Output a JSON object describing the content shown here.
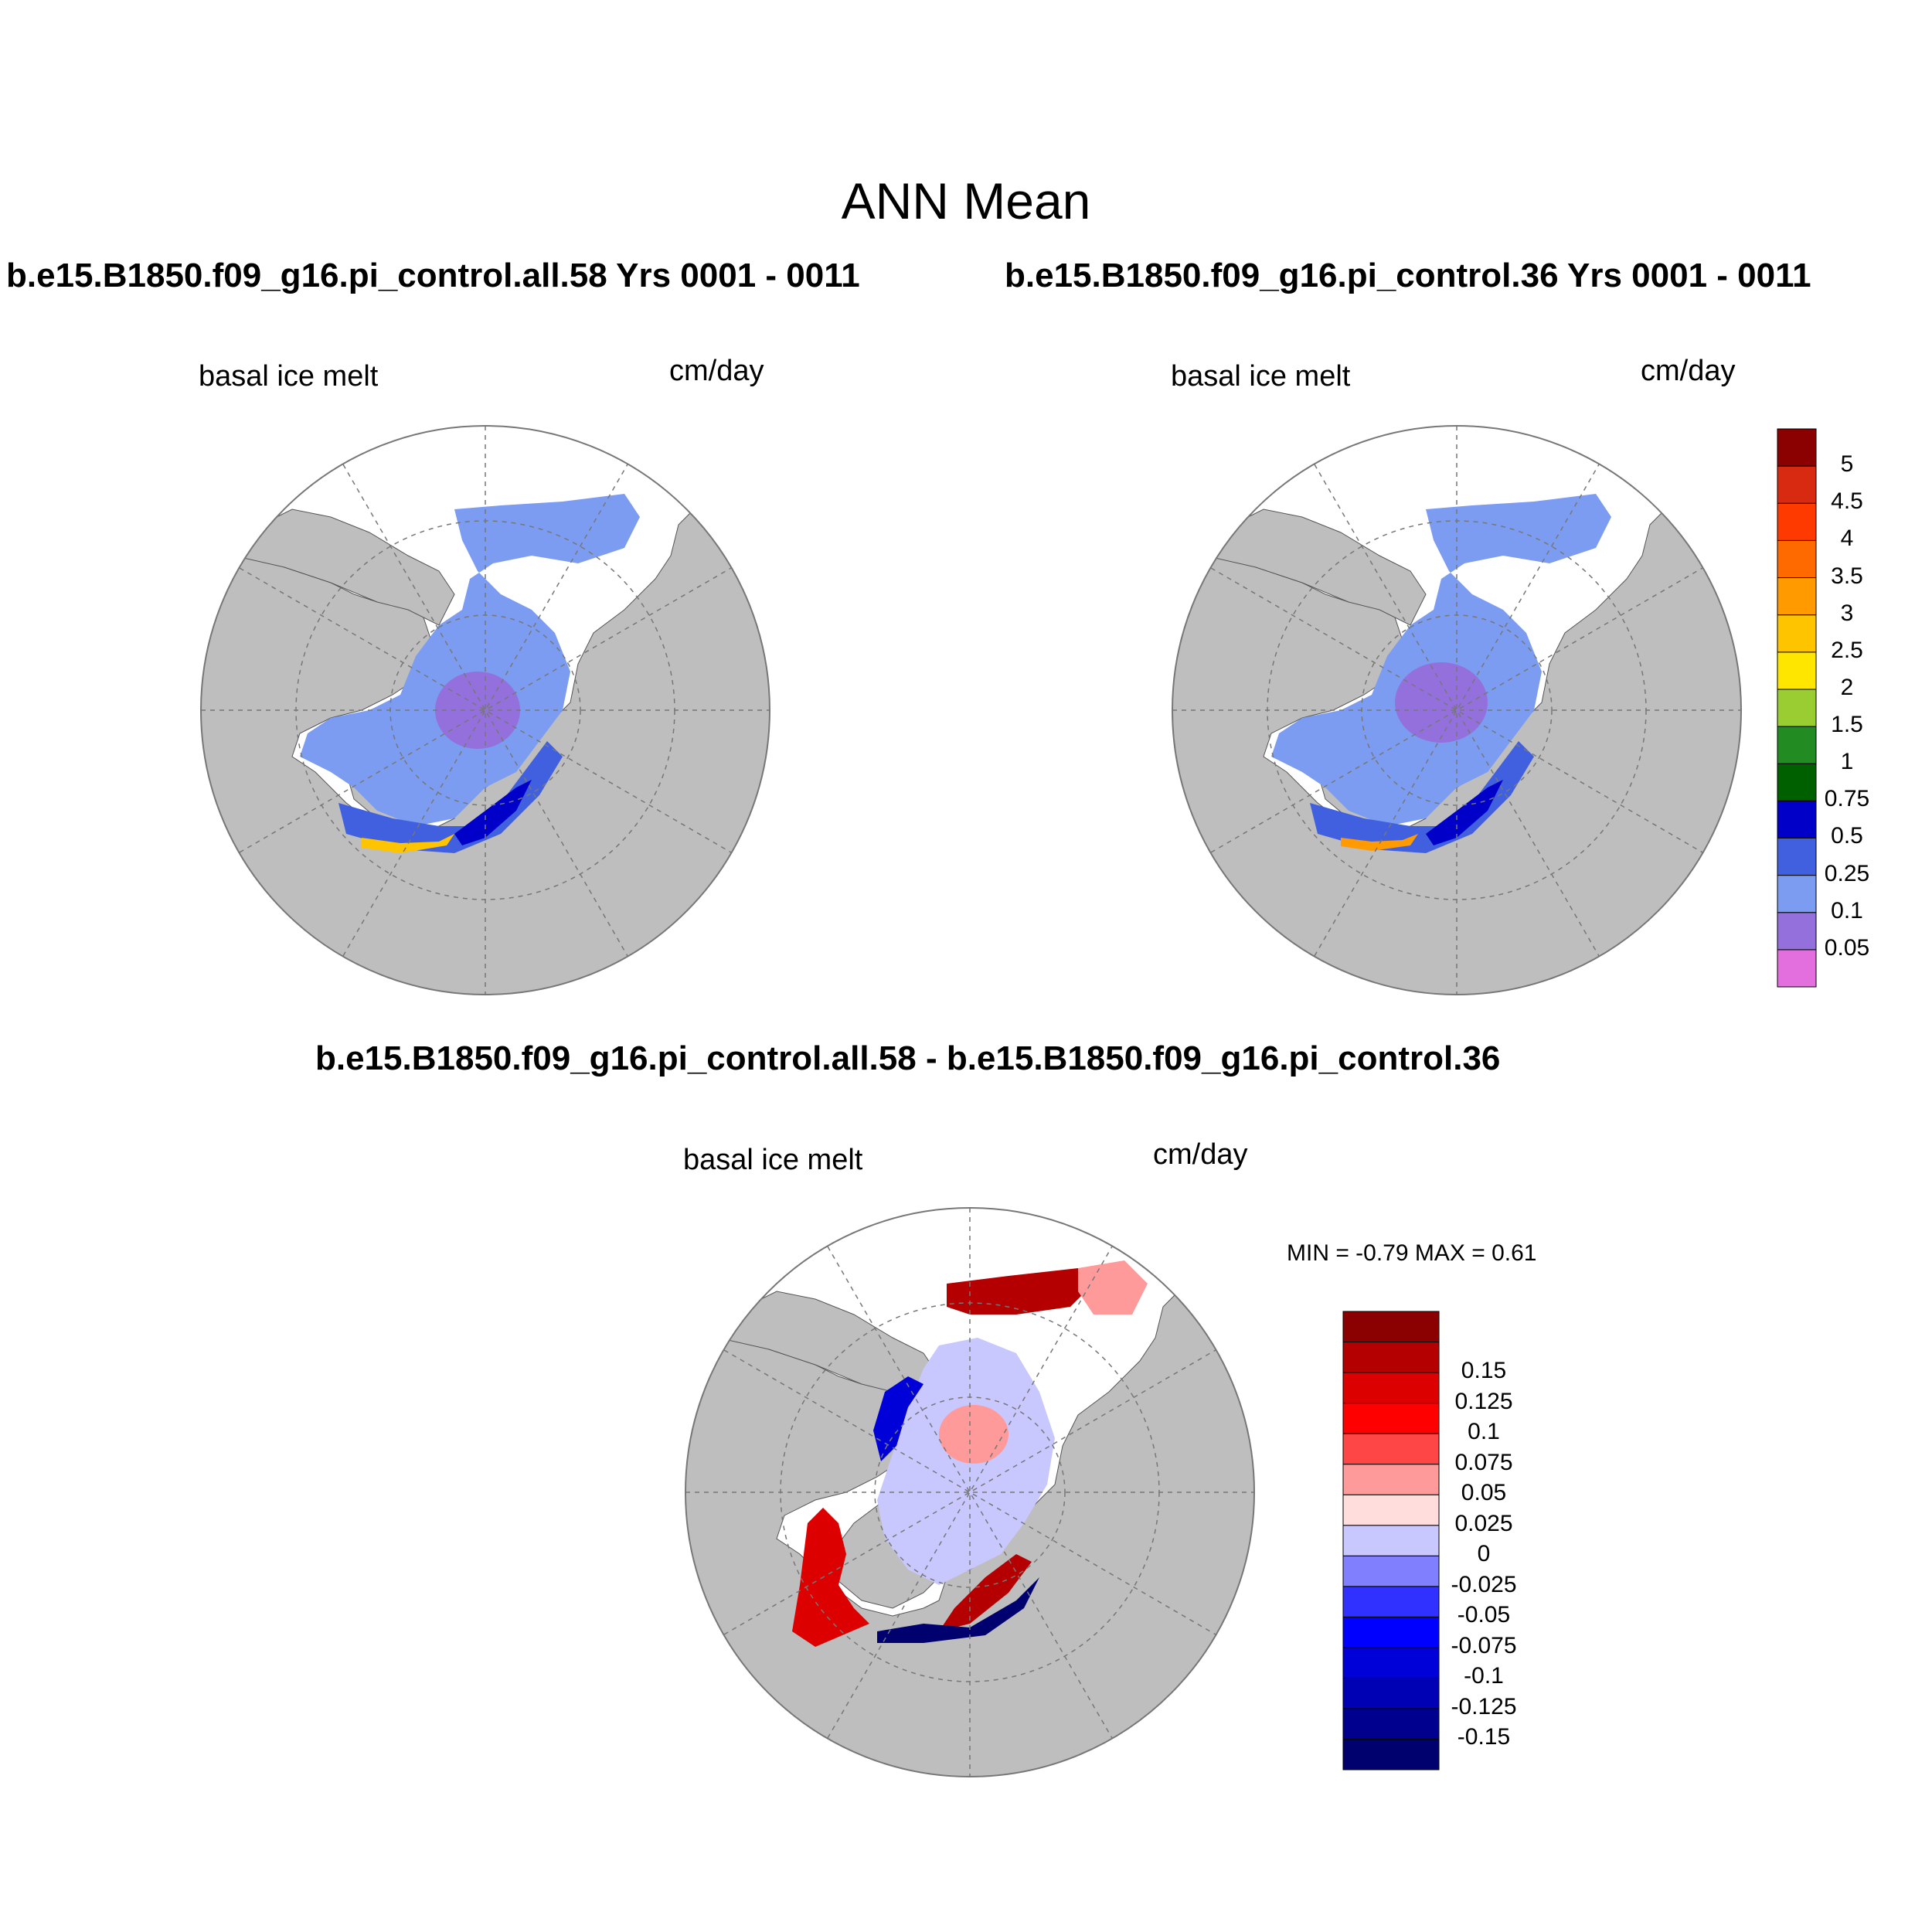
{
  "figure": {
    "title": "ANN Mean"
  },
  "panels": {
    "left": {
      "title": "b.e15.B1850.f09_g16.pi_control.all.58  Yrs 0001 - 0011",
      "field_label": "basal ice melt",
      "units": "cm/day"
    },
    "right": {
      "title": "b.e15.B1850.f09_g16.pi_control.36  Yrs 0001 - 0011",
      "field_label": "basal ice melt",
      "units": "cm/day"
    },
    "diff": {
      "title": "b.e15.B1850.f09_g16.pi_control.all.58 - b.e15.B1850.f09_g16.pi_control.36",
      "field_label": "basal ice melt",
      "units": "cm/day",
      "stats": "MIN =  -0.79 MAX =   0.61"
    }
  },
  "colorbars": {
    "absolute": {
      "colors": [
        "#e36fde",
        "#9370db",
        "#7b9cf0",
        "#4060e0",
        "#0000c8",
        "#006000",
        "#228b22",
        "#9acd32",
        "#ffe600",
        "#ffc400",
        "#ff9a00",
        "#ff6a00",
        "#ff3a00",
        "#d82a10",
        "#8b0000"
      ],
      "labels": [
        "0.05",
        "0.1",
        "0.25",
        "0.5",
        "0.75",
        "1",
        "1.5",
        "2",
        "2.5",
        "3",
        "3.5",
        "4",
        "4.5",
        "5"
      ]
    },
    "difference": {
      "colors": [
        "#00006e",
        "#00008f",
        "#0000b4",
        "#0000d8",
        "#0000ff",
        "#3030ff",
        "#8080ff",
        "#c8c8ff",
        "#ffdddd",
        "#ff9a9a",
        "#ff4646",
        "#ff0000",
        "#dd0000",
        "#b40000",
        "#8b0000"
      ],
      "labels": [
        "-0.15",
        "-0.125",
        "-0.1",
        "-0.075",
        "-0.05",
        "-0.025",
        "0",
        "0.025",
        "0.05",
        "0.075",
        "0.1",
        "0.125",
        "0.15"
      ]
    }
  },
  "map_style": {
    "land_color": "#bebebe",
    "ocean_color": "#ffffff",
    "grid_color": "#777777"
  }
}
